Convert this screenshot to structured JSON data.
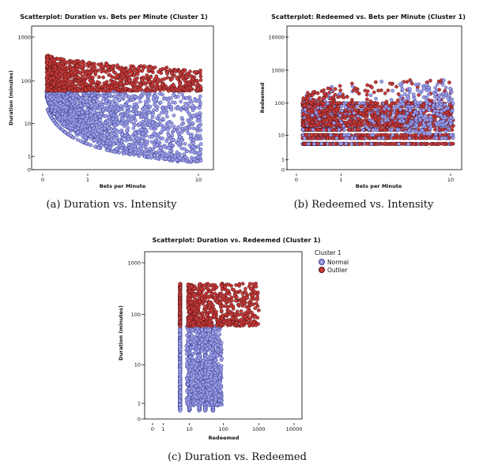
{
  "colors": {
    "normal_fill": "#9fa0e8",
    "normal_stroke": "#2f3488",
    "outlier_fill": "#c83a3a",
    "outlier_stroke": "#4a1010",
    "frame": "#000000"
  },
  "legend": {
    "title": "Cluster 1",
    "items": [
      {
        "label": "Normal",
        "color": "#9fa0e8"
      },
      {
        "label": "Outlier",
        "color": "#c83a3a"
      }
    ],
    "placement": "right"
  },
  "chart_data": [
    {
      "type": "scatter",
      "title": "Scatterplot: Duration vs. Bets per Minute (Cluster 1)",
      "caption": "(a) Duration vs. Intensity",
      "xlabel": "Bets per Minute",
      "ylabel": "Duration (minutes)",
      "x_scale": "log1p",
      "y_scale": "log1p",
      "xlim": [
        0,
        12
      ],
      "ylim": [
        0,
        1500
      ],
      "x_ticks": [
        "0",
        "1",
        "10"
      ],
      "y_ticks": [
        "0",
        "1",
        "10",
        "100",
        "1000"
      ],
      "series": [
        {
          "name": "Normal",
          "description_range": {
            "x": [
              0.05,
              10.5
            ],
            "y": [
              0.4,
              60
            ]
          }
        },
        {
          "name": "Outlier",
          "description_range": {
            "x": [
              0.05,
              10.5
            ],
            "y": [
              60,
              400
            ]
          }
        }
      ]
    },
    {
      "type": "scatter",
      "title": "Scatterplot: Redeemed vs. Bets per Minute (Cluster 1)",
      "caption": "(b) Redeemed vs. Intensity",
      "xlabel": "Bets per Minute",
      "ylabel": "Redeemed",
      "x_scale": "log1p",
      "y_scale": "log1p",
      "xlim": [
        0,
        12
      ],
      "ylim": [
        0,
        15000
      ],
      "x_ticks": [
        "0",
        "1",
        "10"
      ],
      "y_ticks": [
        "0",
        "1",
        "10",
        "100",
        "1000",
        "10000"
      ],
      "series": [
        {
          "name": "Normal",
          "description_range": {
            "x": [
              0.1,
              10.5
            ],
            "y": [
              5,
              400
            ]
          }
        },
        {
          "name": "Outlier",
          "description_range": {
            "x": [
              0.1,
              10.5
            ],
            "y": [
              5,
              1200
            ]
          }
        }
      ]
    },
    {
      "type": "scatter",
      "title": "Scatterplot: Duration vs. Redeemed (Cluster 1)",
      "caption": "(c) Duration vs. Redeemed",
      "xlabel": "Redeemed",
      "ylabel": "Duration (minutes)",
      "x_scale": "log1p",
      "y_scale": "log1p",
      "xlim": [
        0,
        15000
      ],
      "ylim": [
        0,
        1500
      ],
      "x_ticks": [
        "0",
        "1",
        "10",
        "100",
        "1000",
        "10000"
      ],
      "y_ticks": [
        "0",
        "1",
        "10",
        "100",
        "1000"
      ],
      "series": [
        {
          "name": "Normal",
          "description_range": {
            "x": [
              5,
              90
            ],
            "y": [
              0.4,
              60
            ]
          }
        },
        {
          "name": "Outlier",
          "description_range": {
            "x": [
              5,
              1000
            ],
            "y": [
              60,
              400
            ]
          }
        }
      ]
    }
  ]
}
